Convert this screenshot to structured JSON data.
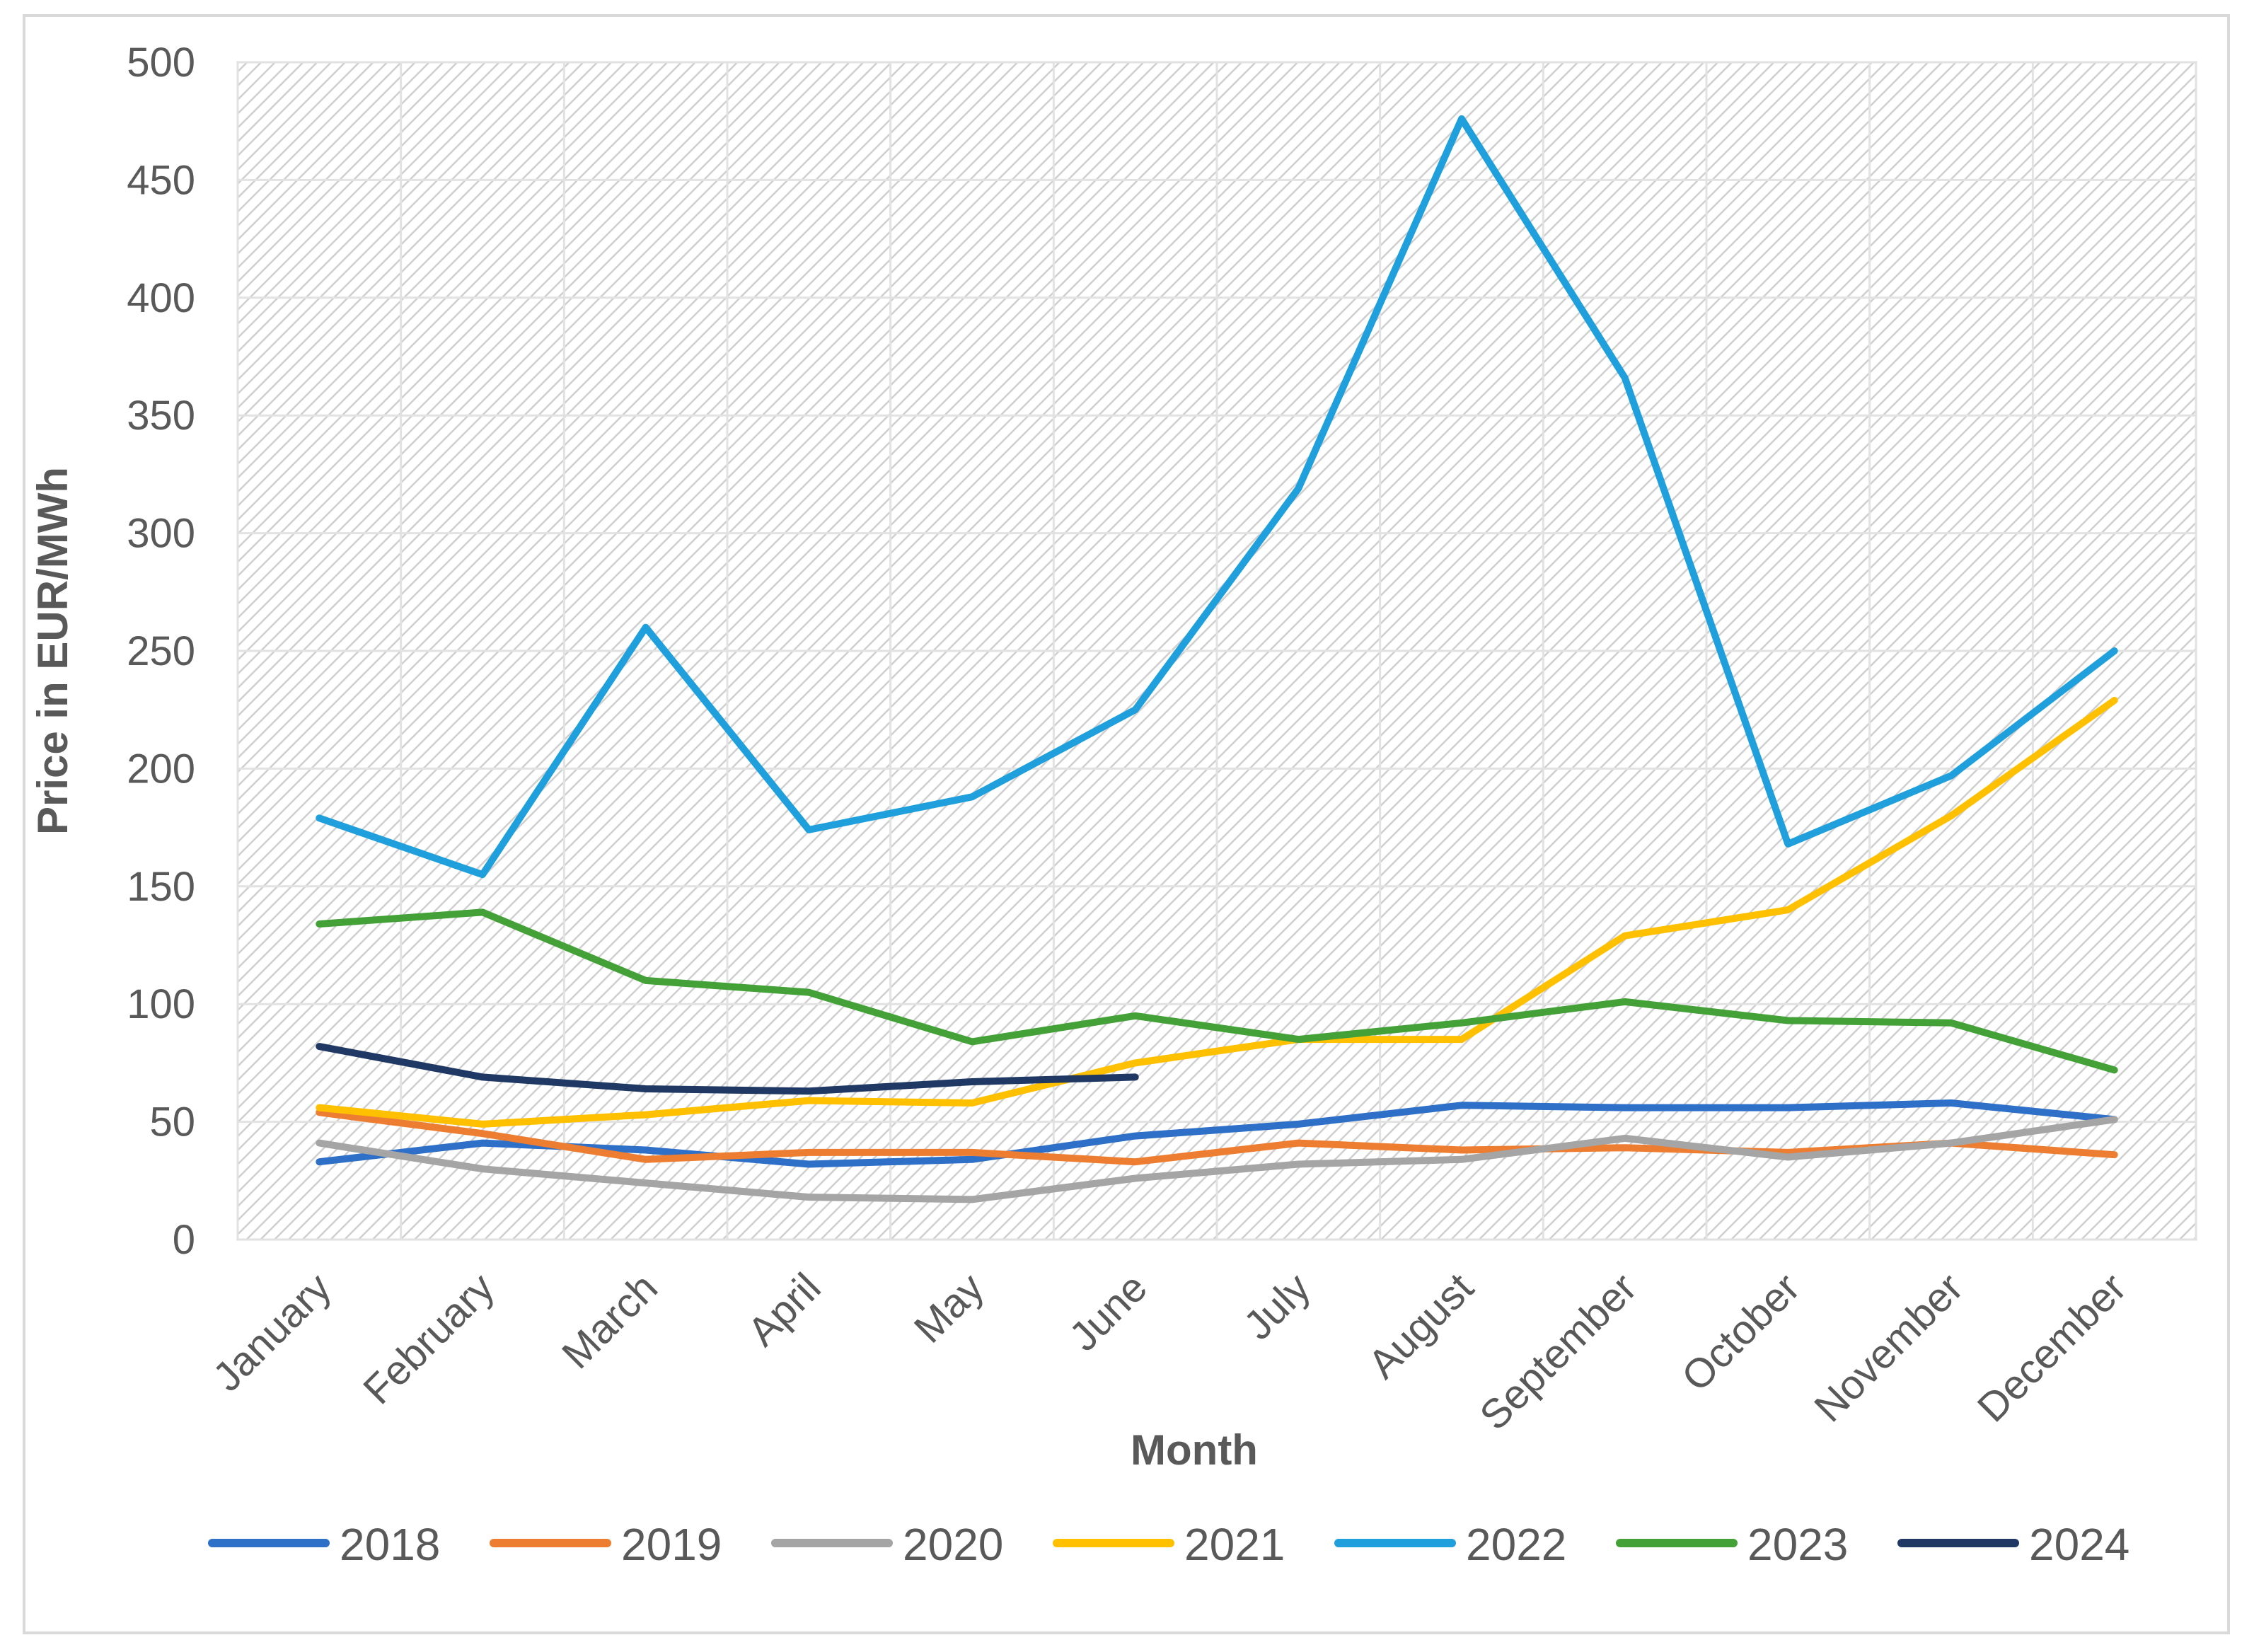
{
  "chart_data": {
    "type": "line",
    "title": "",
    "xlabel": "Month",
    "ylabel": "Price in EUR/MWh",
    "ylim": [
      0,
      500
    ],
    "yticks": [
      0,
      50,
      100,
      150,
      200,
      250,
      300,
      350,
      400,
      450,
      500
    ],
    "grid": true,
    "legend_position": "bottom",
    "categories": [
      "January",
      "February",
      "March",
      "April",
      "May",
      "June",
      "July",
      "August",
      "September",
      "October",
      "November",
      "December"
    ],
    "series": [
      {
        "name": "2018",
        "color": "#2e6fc7",
        "values": [
          33,
          41,
          38,
          32,
          34,
          44,
          49,
          57,
          56,
          56,
          58,
          51
        ]
      },
      {
        "name": "2019",
        "color": "#ed7d31",
        "values": [
          54,
          45,
          34,
          37,
          37,
          33,
          41,
          38,
          39,
          37,
          41,
          36
        ]
      },
      {
        "name": "2020",
        "color": "#a5a5a5",
        "values": [
          41,
          30,
          24,
          18,
          17,
          26,
          32,
          34,
          43,
          35,
          41,
          51
        ]
      },
      {
        "name": "2021",
        "color": "#ffc000",
        "values": [
          56,
          49,
          53,
          59,
          58,
          75,
          85,
          85,
          129,
          140,
          180,
          229
        ]
      },
      {
        "name": "2022",
        "color": "#1f9fdb",
        "values": [
          179,
          155,
          260,
          174,
          188,
          225,
          319,
          476,
          366,
          168,
          197,
          250
        ]
      },
      {
        "name": "2023",
        "color": "#43a138",
        "values": [
          134,
          139,
          110,
          105,
          84,
          95,
          85,
          92,
          101,
          93,
          92,
          72
        ]
      },
      {
        "name": "2024",
        "color": "#1f3864",
        "values": [
          82,
          69,
          64,
          63,
          67,
          69,
          null,
          null,
          null,
          null,
          null,
          null
        ]
      }
    ]
  }
}
